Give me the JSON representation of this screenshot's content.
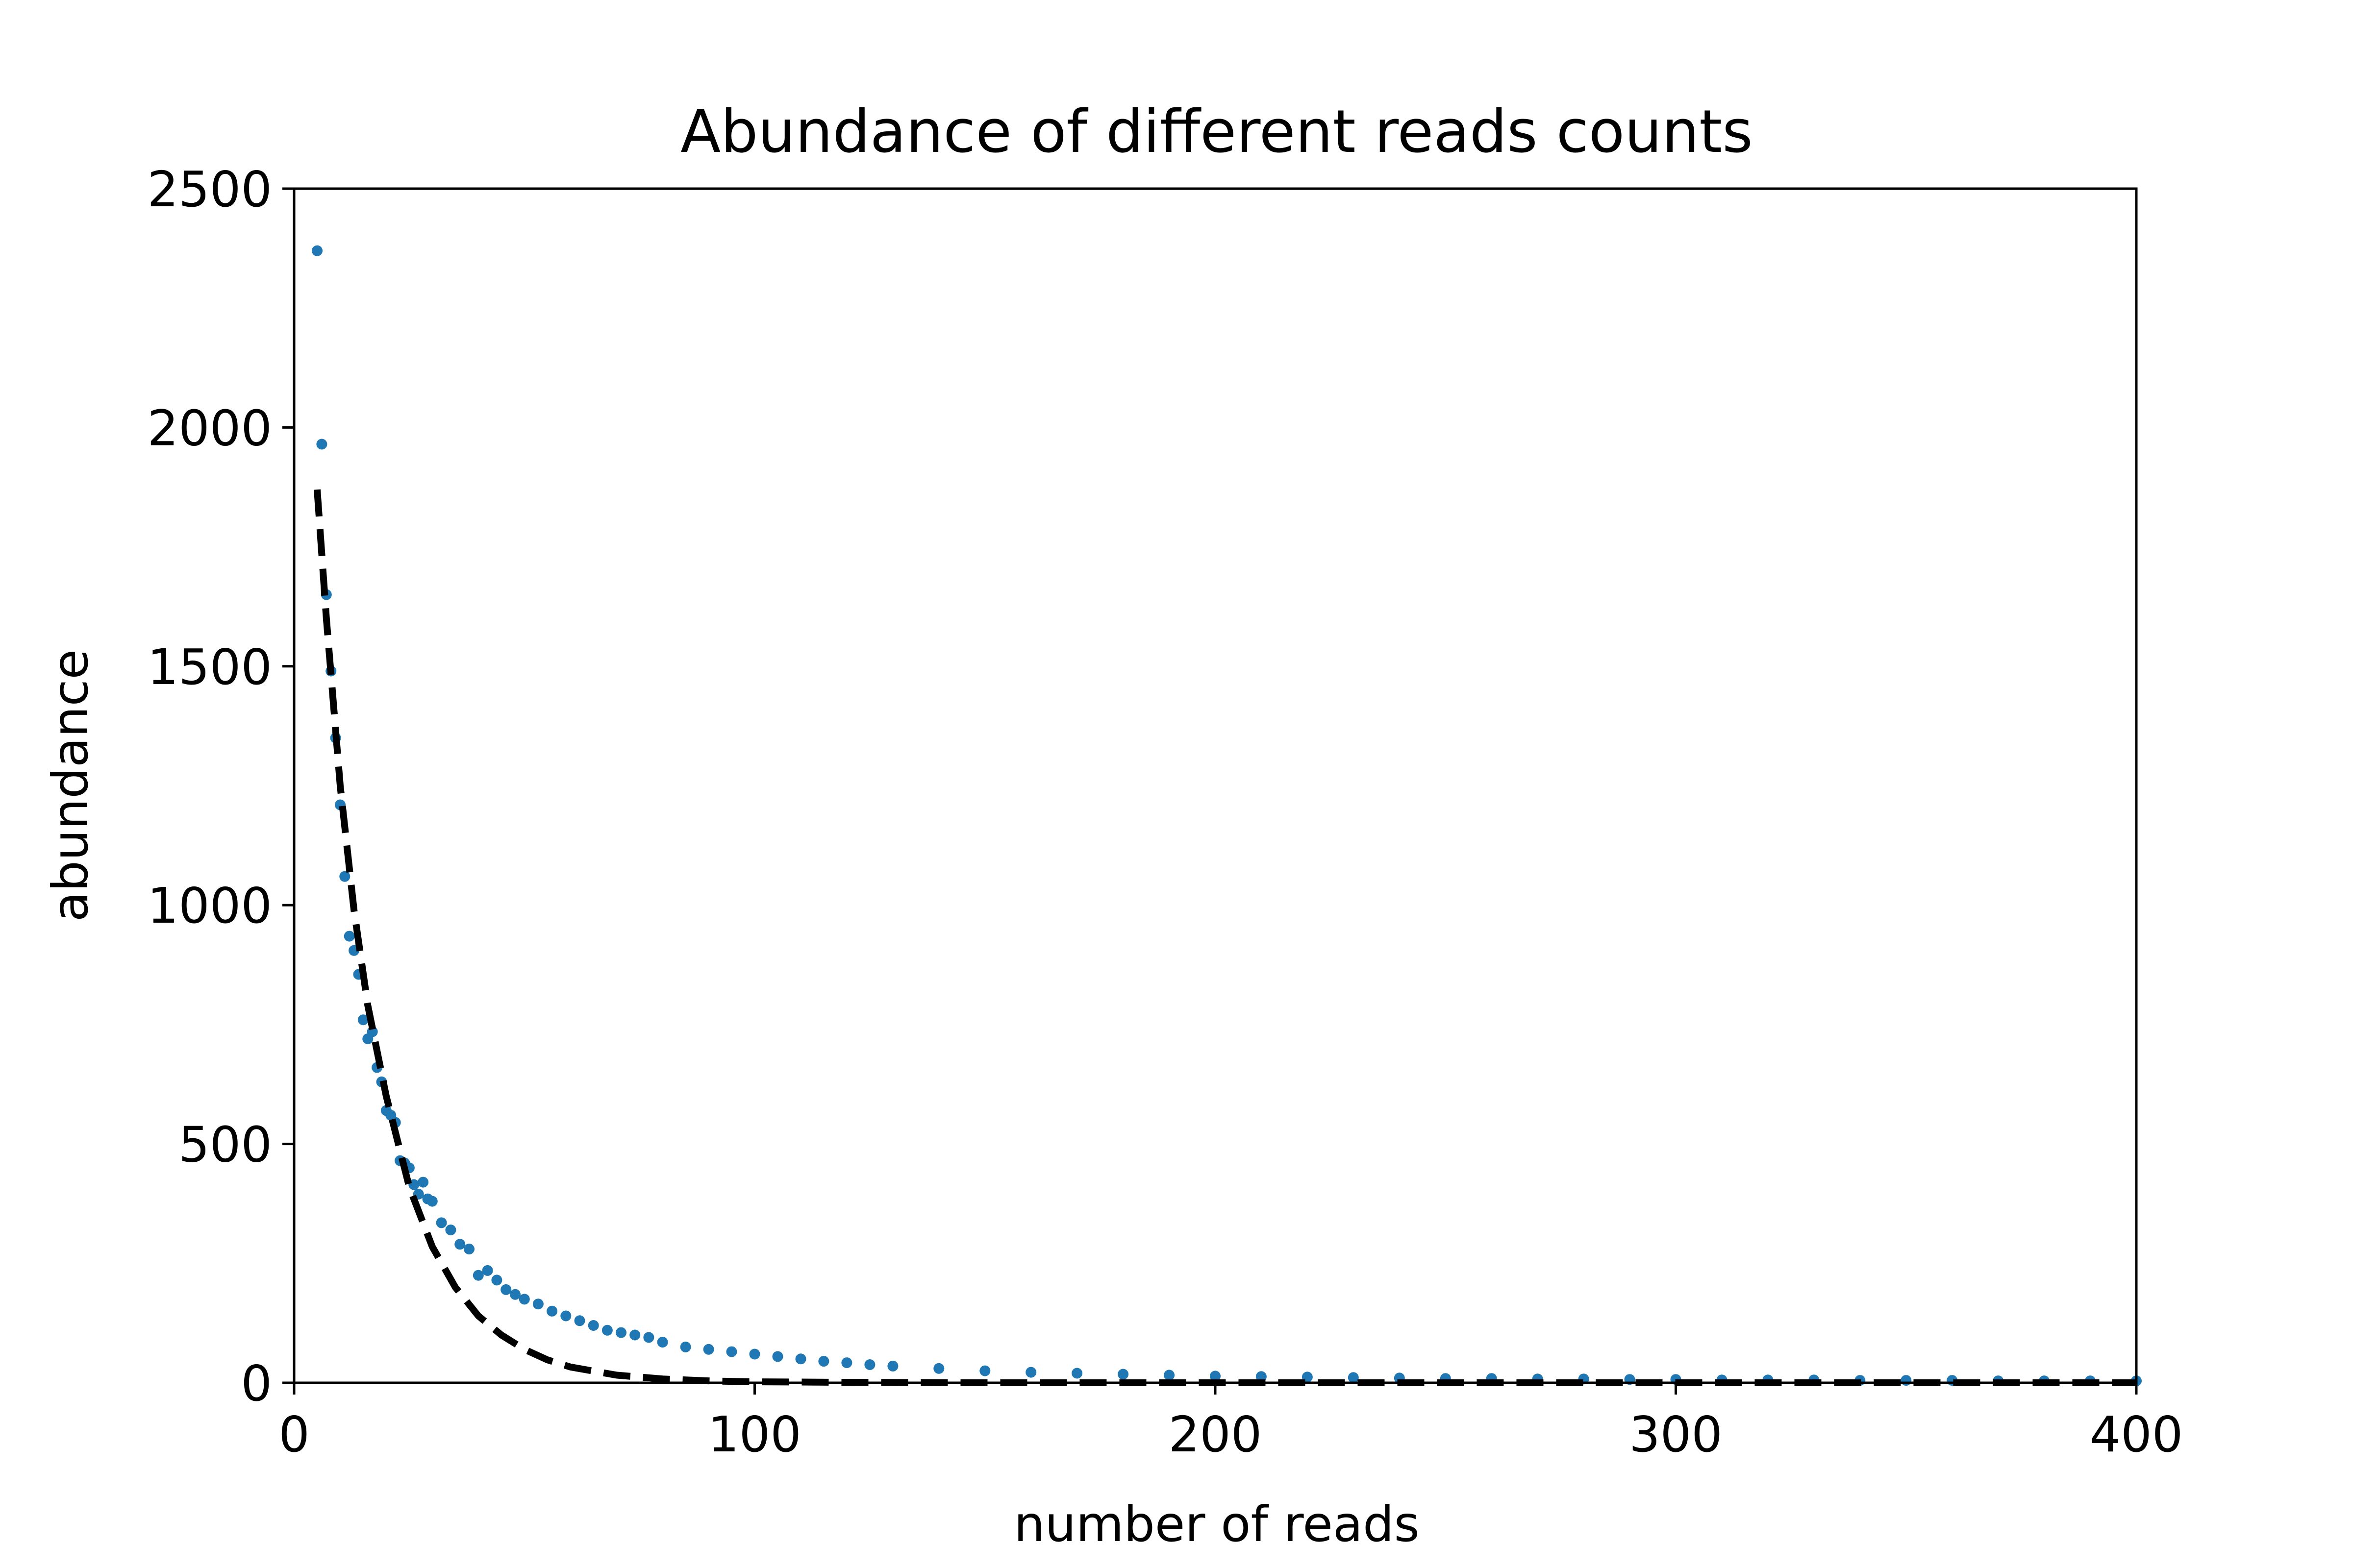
{
  "chart_data": {
    "type": "scatter",
    "title": "Abundance of different reads counts",
    "xlabel": "number of reads",
    "ylabel": "abundance",
    "xlim": [
      0,
      400
    ],
    "ylim": [
      0,
      2500
    ],
    "xticks": [
      "0",
      "100",
      "200",
      "300",
      "400"
    ],
    "yticks": [
      "0",
      "500",
      "1000",
      "1500",
      "2000",
      "2500"
    ],
    "grid": false,
    "legend": "none",
    "colors": {
      "points": "#1f77b4",
      "fit": "#000000"
    },
    "series": [
      {
        "kind": "points",
        "x": [
          5,
          6,
          7,
          8,
          9,
          10,
          11,
          12,
          13,
          14,
          15,
          16,
          17,
          18,
          19,
          20,
          21,
          22,
          23,
          24,
          25,
          26,
          27,
          28,
          29,
          30,
          32,
          34,
          36,
          38,
          40,
          42,
          44,
          46,
          48,
          50,
          53,
          56,
          59,
          62,
          65,
          68,
          71,
          74,
          77,
          80,
          85,
          90,
          95,
          100,
          105,
          110,
          115,
          120,
          125,
          130,
          140,
          150,
          160,
          170,
          180,
          190,
          200,
          210,
          220,
          230,
          240,
          250,
          260,
          270,
          280,
          290,
          300,
          310,
          320,
          330,
          340,
          350,
          360,
          370,
          380,
          390,
          400
        ],
        "y": [
          2370,
          1965,
          1650,
          1490,
          1350,
          1210,
          1060,
          935,
          905,
          855,
          760,
          720,
          735,
          660,
          630,
          570,
          560,
          545,
          465,
          460,
          450,
          415,
          395,
          420,
          385,
          380,
          335,
          320,
          290,
          280,
          225,
          235,
          215,
          195,
          185,
          175,
          165,
          150,
          140,
          130,
          120,
          110,
          105,
          100,
          95,
          85,
          75,
          70,
          65,
          60,
          55,
          50,
          45,
          42,
          38,
          35,
          30,
          25,
          22,
          20,
          18,
          16,
          14,
          13,
          12,
          11,
          10,
          9,
          9,
          8,
          8,
          7,
          7,
          6,
          6,
          6,
          5,
          5,
          5,
          4,
          4,
          4,
          4
        ]
      },
      {
        "kind": "dashed-line",
        "x": [
          5,
          7,
          10,
          13,
          16,
          20,
          25,
          30,
          35,
          40,
          45,
          50,
          55,
          60,
          70,
          80,
          90,
          100,
          120,
          150,
          200,
          250,
          300,
          350,
          400
        ],
        "y": [
          1870,
          1600,
          1250,
          990,
          790,
          600,
          410,
          285,
          200,
          140,
          100,
          70,
          48,
          33,
          16,
          8,
          4,
          2,
          1,
          0,
          0,
          0,
          0,
          0,
          0
        ]
      }
    ]
  }
}
